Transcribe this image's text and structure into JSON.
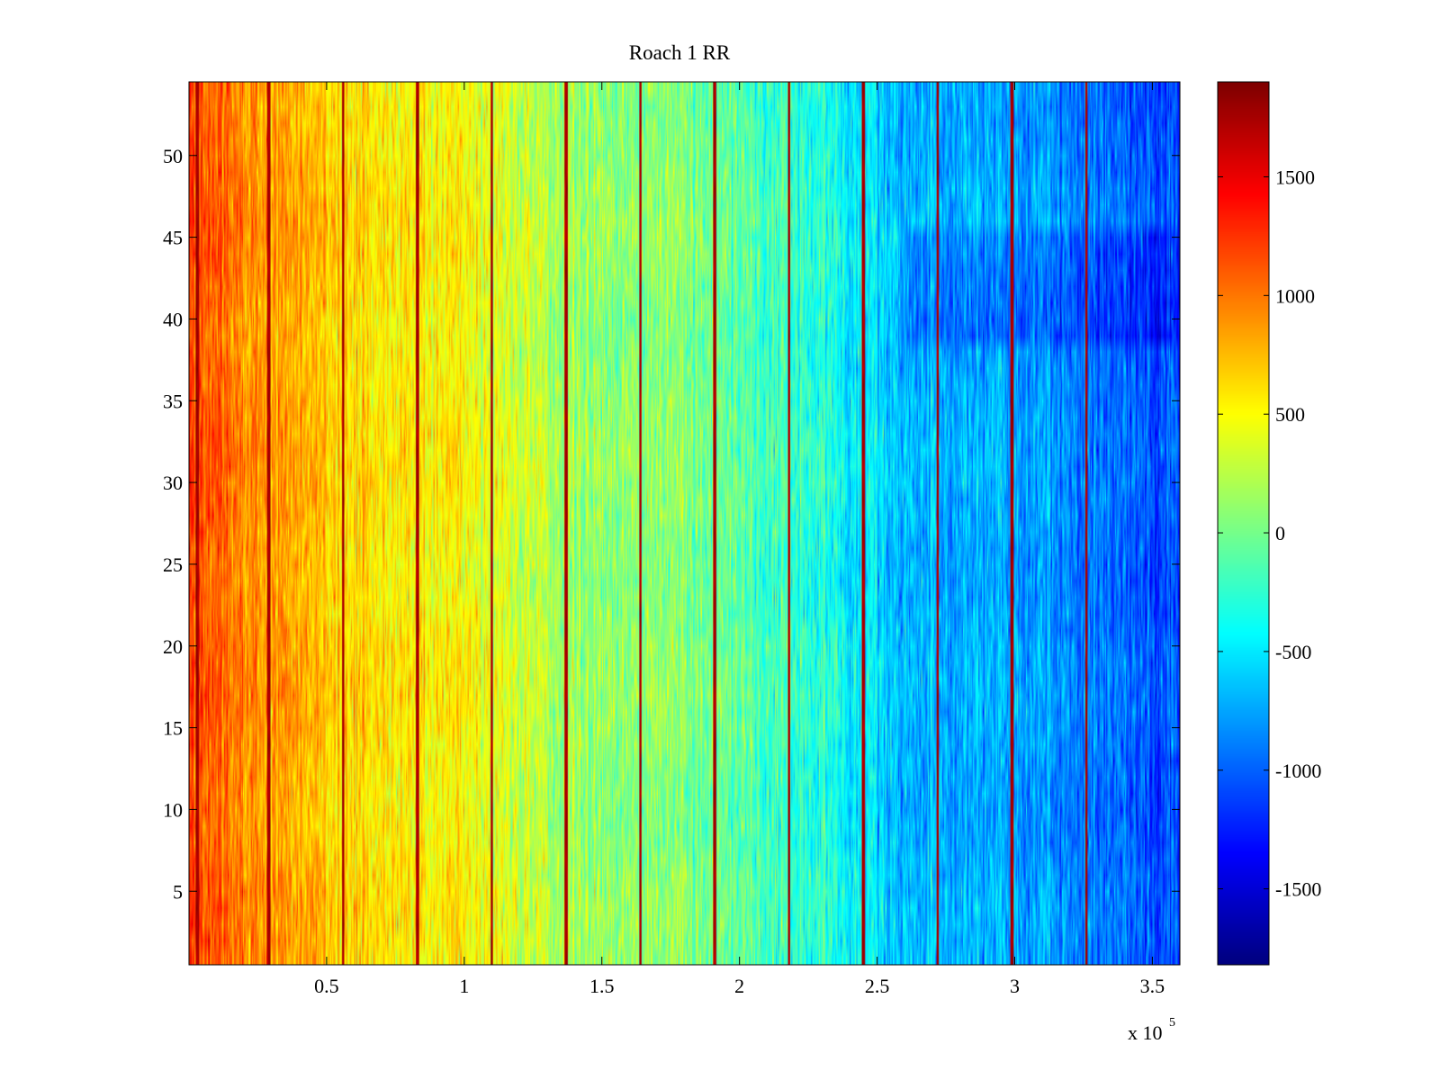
{
  "chart_data": {
    "type": "heatmap",
    "title": "Roach 1 RR",
    "xlabel": "",
    "ylabel": "",
    "xlim": [
      0,
      3.6
    ],
    "ylim": [
      0.5,
      54.5
    ],
    "x_multiplier": {
      "prefix": "x 10",
      "exponent": "5"
    },
    "x_ticks": [
      0.5,
      1,
      1.5,
      2,
      2.5,
      3,
      3.5
    ],
    "x_tick_labels": [
      "0.5",
      "1",
      "1.5",
      "2",
      "2.5",
      "3",
      "3.5"
    ],
    "y_ticks": [
      5,
      10,
      15,
      20,
      25,
      30,
      35,
      40,
      45,
      50
    ],
    "y_tick_labels": [
      "5",
      "10",
      "15",
      "20",
      "25",
      "30",
      "35",
      "40",
      "45",
      "50"
    ],
    "rows": 54,
    "colormap": "jet",
    "clim": [
      -1820,
      1900
    ],
    "colorbar_ticks": [
      1500,
      1000,
      500,
      0,
      -500,
      -1000,
      -1500
    ],
    "colorbar_tick_labels": [
      "1500",
      "1000",
      "500",
      "0",
      "-500",
      "-1000",
      "-1500"
    ],
    "trend": {
      "description": "values decrease roughly linearly from left to right with per-cell noise",
      "x": [
        0,
        0.3,
        0.6,
        1.0,
        1.4,
        1.8,
        2.2,
        2.6,
        3.0,
        3.3,
        3.6
      ],
      "value": [
        1150,
        850,
        650,
        520,
        150,
        50,
        -200,
        -650,
        -750,
        -900,
        -1050
      ]
    },
    "stripes": {
      "description": "narrow vertical high-value (dark red) columns",
      "x": [
        0.03,
        0.29,
        0.56,
        0.83,
        1.1,
        1.37,
        1.64,
        1.91,
        2.18,
        2.45,
        2.72,
        2.99,
        3.26
      ],
      "value": 1750
    }
  }
}
